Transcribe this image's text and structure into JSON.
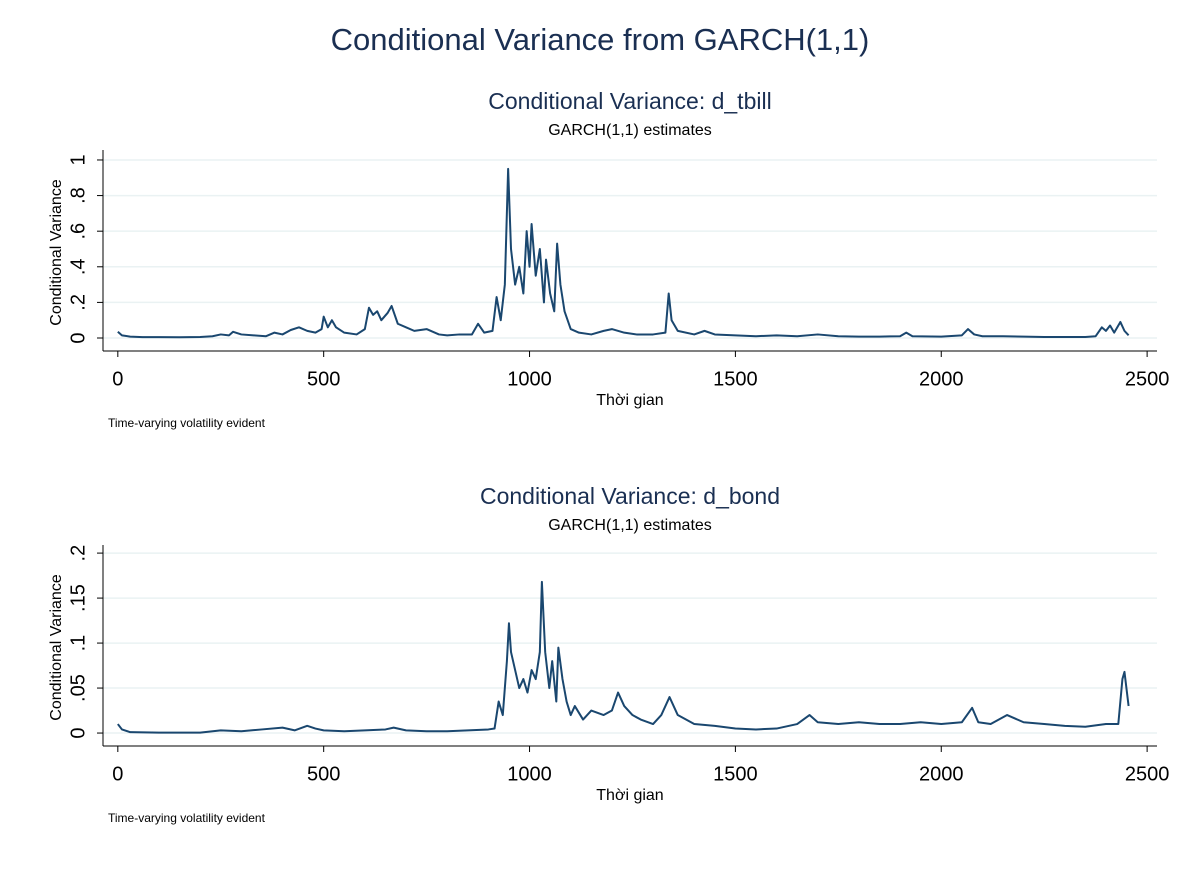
{
  "title": "Conditional Variance from GARCH(1,1)",
  "chart_data": [
    {
      "type": "line",
      "title": "Conditional Variance: d_tbill",
      "subtitle": "GARCH(1,1) estimates",
      "x_label": "Thời gian",
      "y_label": "Conditional Variance",
      "note": "Time-varying volatility evident",
      "color": "#1a476f",
      "grid": true,
      "xlim": [
        -36,
        2524
      ],
      "xticks": [
        0,
        500,
        1000,
        1500,
        2000,
        2500
      ],
      "ylim": [
        -0.073,
        1.056
      ],
      "yticks": [
        0,
        {
          "value": 0.2,
          "label": ".2"
        },
        {
          "value": 0.4,
          "label": ".4"
        },
        {
          "value": 0.6,
          "label": ".6"
        },
        {
          "value": 0.8,
          "label": ".8"
        },
        1
      ],
      "x": [
        0,
        10,
        30,
        60,
        100,
        150,
        200,
        230,
        250,
        270,
        280,
        300,
        330,
        360,
        380,
        400,
        420,
        440,
        460,
        480,
        495,
        500,
        510,
        520,
        530,
        550,
        580,
        600,
        610,
        620,
        630,
        640,
        655,
        665,
        680,
        700,
        720,
        750,
        780,
        800,
        830,
        860,
        875,
        890,
        910,
        920,
        930,
        940,
        948,
        955,
        965,
        975,
        985,
        993,
        1000,
        1005,
        1015,
        1025,
        1035,
        1040,
        1050,
        1060,
        1067,
        1075,
        1085,
        1100,
        1120,
        1150,
        1180,
        1200,
        1230,
        1260,
        1300,
        1330,
        1338,
        1345,
        1360,
        1400,
        1425,
        1450,
        1500,
        1550,
        1600,
        1650,
        1700,
        1750,
        1800,
        1850,
        1900,
        1915,
        1930,
        2000,
        2050,
        2065,
        2080,
        2100,
        2150,
        2200,
        2250,
        2300,
        2350,
        2375,
        2390,
        2400,
        2410,
        2420,
        2435,
        2445,
        2455
      ],
      "values": [
        0.035,
        0.015,
        0.008,
        0.005,
        0.005,
        0.004,
        0.006,
        0.01,
        0.02,
        0.015,
        0.035,
        0.02,
        0.015,
        0.01,
        0.03,
        0.02,
        0.045,
        0.06,
        0.04,
        0.03,
        0.05,
        0.12,
        0.06,
        0.1,
        0.06,
        0.03,
        0.02,
        0.05,
        0.17,
        0.13,
        0.15,
        0.1,
        0.14,
        0.18,
        0.08,
        0.06,
        0.04,
        0.05,
        0.02,
        0.015,
        0.02,
        0.02,
        0.08,
        0.03,
        0.04,
        0.23,
        0.1,
        0.3,
        0.95,
        0.5,
        0.3,
        0.4,
        0.25,
        0.6,
        0.4,
        0.64,
        0.35,
        0.5,
        0.2,
        0.44,
        0.25,
        0.15,
        0.53,
        0.3,
        0.15,
        0.05,
        0.03,
        0.02,
        0.04,
        0.05,
        0.03,
        0.02,
        0.02,
        0.03,
        0.25,
        0.1,
        0.04,
        0.02,
        0.04,
        0.02,
        0.015,
        0.01,
        0.015,
        0.01,
        0.02,
        0.01,
        0.008,
        0.008,
        0.01,
        0.03,
        0.01,
        0.008,
        0.015,
        0.05,
        0.02,
        0.01,
        0.01,
        0.008,
        0.006,
        0.006,
        0.006,
        0.01,
        0.06,
        0.04,
        0.07,
        0.03,
        0.09,
        0.04,
        0.015
      ]
    },
    {
      "type": "line",
      "title": "Conditional Variance: d_bond",
      "subtitle": "GARCH(1,1) estimates",
      "x_label": "Thời gian",
      "y_label": "Conditional Variance",
      "note": "Time-varying volatility evident",
      "color": "#1a476f",
      "grid": true,
      "xlim": [
        -36,
        2524
      ],
      "xticks": [
        0,
        500,
        1000,
        1500,
        2000,
        2500
      ],
      "ylim": [
        -0.0144,
        0.209
      ],
      "yticks": [
        0,
        {
          "value": 0.05,
          "label": ".05"
        },
        {
          "value": 0.1,
          "label": ".1"
        },
        {
          "value": 0.15,
          "label": ".15"
        },
        {
          "value": 0.2,
          "label": ".2"
        }
      ],
      "x": [
        0,
        10,
        30,
        100,
        200,
        250,
        300,
        350,
        400,
        430,
        460,
        480,
        500,
        550,
        600,
        650,
        670,
        700,
        750,
        800,
        850,
        900,
        915,
        925,
        935,
        945,
        950,
        955,
        965,
        975,
        985,
        995,
        1005,
        1015,
        1025,
        1030,
        1038,
        1048,
        1055,
        1065,
        1070,
        1080,
        1090,
        1100,
        1110,
        1130,
        1150,
        1180,
        1200,
        1215,
        1230,
        1250,
        1270,
        1300,
        1320,
        1340,
        1360,
        1400,
        1450,
        1500,
        1550,
        1600,
        1650,
        1680,
        1700,
        1750,
        1800,
        1850,
        1900,
        1950,
        2000,
        2050,
        2075,
        2090,
        2120,
        2160,
        2200,
        2250,
        2300,
        2350,
        2400,
        2430,
        2440,
        2445,
        2455
      ],
      "values": [
        0.01,
        0.004,
        0.001,
        0.0005,
        0.0005,
        0.003,
        0.002,
        0.004,
        0.006,
        0.003,
        0.008,
        0.005,
        0.003,
        0.002,
        0.003,
        0.004,
        0.006,
        0.003,
        0.002,
        0.002,
        0.003,
        0.004,
        0.005,
        0.035,
        0.02,
        0.08,
        0.122,
        0.09,
        0.07,
        0.05,
        0.06,
        0.045,
        0.07,
        0.06,
        0.09,
        0.168,
        0.09,
        0.05,
        0.08,
        0.035,
        0.095,
        0.06,
        0.035,
        0.02,
        0.03,
        0.015,
        0.025,
        0.02,
        0.025,
        0.045,
        0.03,
        0.02,
        0.015,
        0.01,
        0.02,
        0.04,
        0.02,
        0.01,
        0.008,
        0.005,
        0.004,
        0.005,
        0.01,
        0.02,
        0.012,
        0.01,
        0.012,
        0.01,
        0.01,
        0.012,
        0.01,
        0.012,
        0.028,
        0.012,
        0.01,
        0.02,
        0.012,
        0.01,
        0.008,
        0.007,
        0.01,
        0.01,
        0.06,
        0.068,
        0.03
      ]
    }
  ]
}
